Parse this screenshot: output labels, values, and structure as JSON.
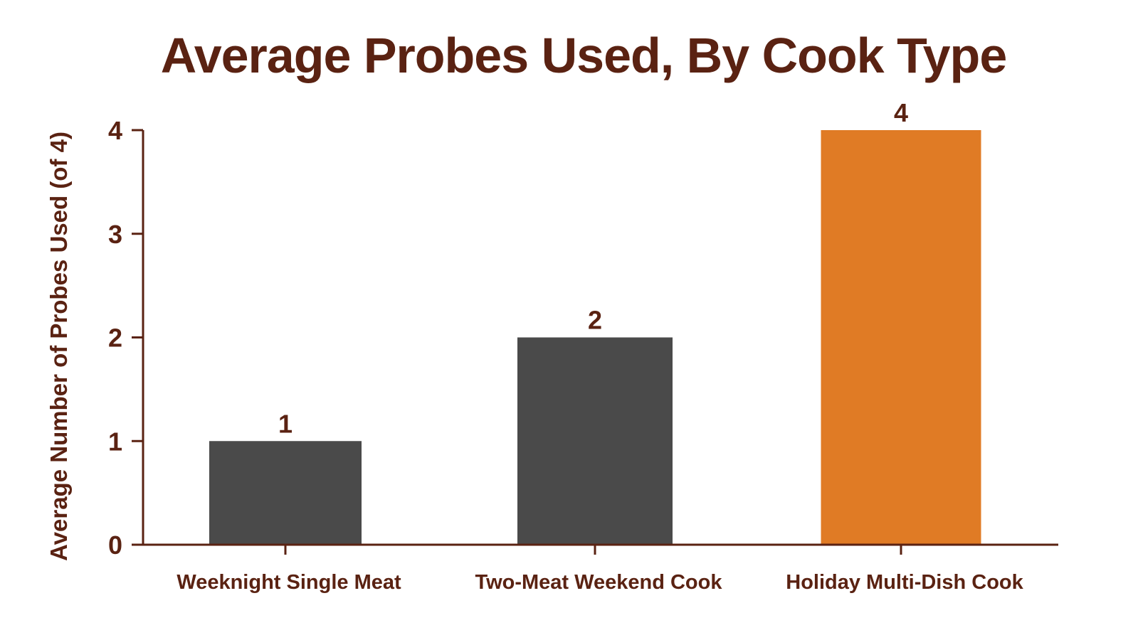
{
  "chart_data": {
    "type": "bar",
    "title": "Average Probes Used, By Cook Type",
    "xlabel": "",
    "ylabel": "Average Number of Probes Used (of 4)",
    "categories": [
      "Weeknight Single Meat",
      "Two-Meat Weekend Cook",
      "Holiday Multi-Dish Cook"
    ],
    "values": [
      1,
      2,
      4
    ],
    "data_labels": [
      "1",
      "2",
      "4"
    ],
    "bar_colors": [
      "#4a4a4a",
      "#4a4a4a",
      "#e07b25"
    ],
    "ylim": [
      0,
      4
    ],
    "yticks": [
      0,
      1,
      2,
      3,
      4
    ],
    "grid": false,
    "legend": "none",
    "colors": {
      "text": "#5a2212",
      "axis": "#5a2212",
      "neutral_bar": "#4a4a4a",
      "highlight_bar": "#e07b25"
    }
  }
}
